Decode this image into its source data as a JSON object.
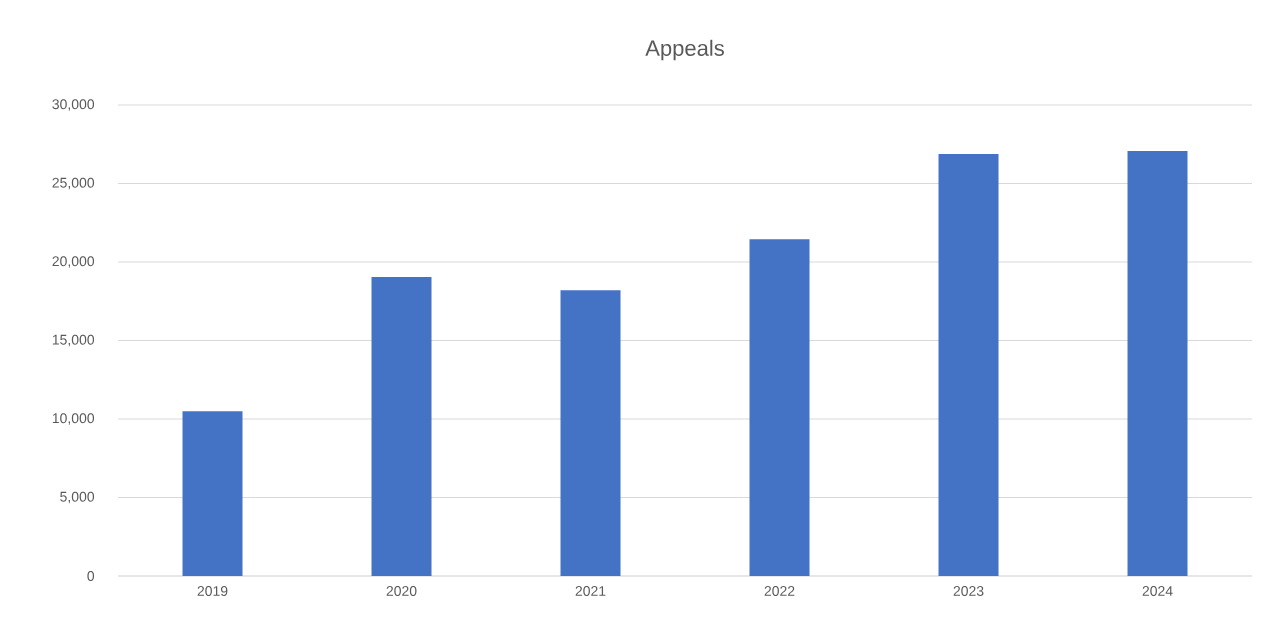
{
  "chart_data": {
    "type": "bar",
    "title": "Appeals",
    "categories": [
      "2019",
      "2020",
      "2021",
      "2022",
      "2023",
      "2024"
    ],
    "values": [
      10500,
      19050,
      18200,
      21450,
      26880,
      27070
    ],
    "color": "#4472c4",
    "ylim": [
      0,
      30000
    ],
    "yticks": [
      {
        "value": 0,
        "label": "0"
      },
      {
        "value": 5000,
        "label": "5,000"
      },
      {
        "value": 10000,
        "label": "10,000"
      },
      {
        "value": 15000,
        "label": "15,000"
      },
      {
        "value": 20000,
        "label": "20,000"
      },
      {
        "value": 25000,
        "label": "25,000"
      },
      {
        "value": 30000,
        "label": "30,000"
      }
    ],
    "grid": "y"
  }
}
